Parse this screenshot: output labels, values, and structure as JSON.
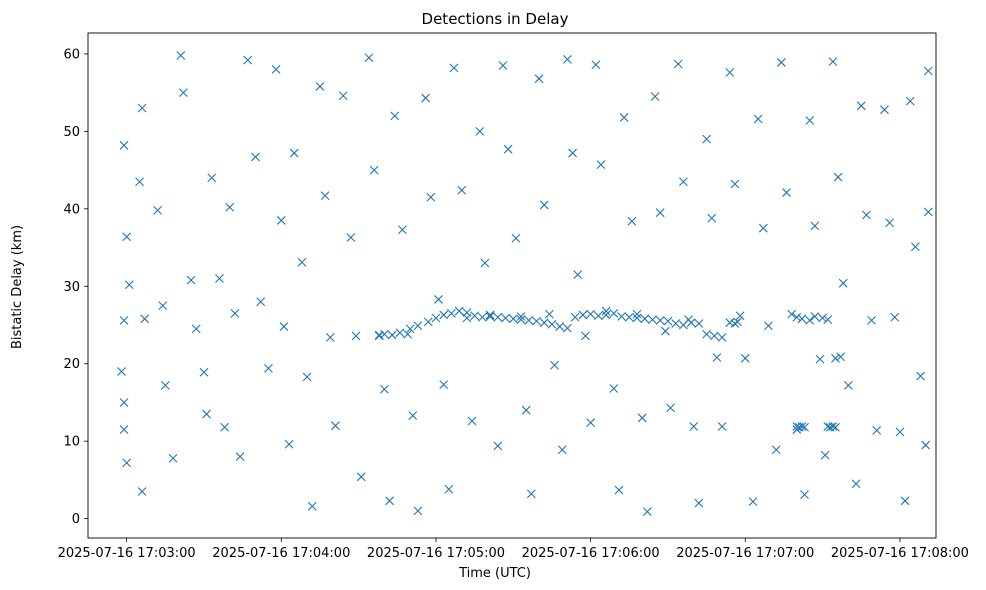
{
  "chart_data": {
    "type": "scatter",
    "title": "Detections in Delay",
    "xlabel": "Time (UTC)",
    "ylabel": "Bistatic Delay (km)",
    "marker": "x",
    "color": "#1f77b4",
    "xlim": [
      "2025-07-16 17:02:45",
      "2025-07-16 17:08:14"
    ],
    "ylim": [
      -2.5,
      62.7
    ],
    "x_ticks": [
      "2025-07-16 17:03:00",
      "2025-07-16 17:04:00",
      "2025-07-16 17:05:00",
      "2025-07-16 17:06:00",
      "2025-07-16 17:07:00",
      "2025-07-16 17:08:00"
    ],
    "y_ticks": [
      0,
      10,
      20,
      30,
      40,
      50,
      60
    ],
    "grid": false,
    "points": [
      [
        "2025-07-16 17:02:59",
        48.2
      ],
      [
        "2025-07-16 17:03:00",
        36.4
      ],
      [
        "2025-07-16 17:03:01",
        30.2
      ],
      [
        "2025-07-16 17:02:59",
        25.6
      ],
      [
        "2025-07-16 17:02:58",
        19.0
      ],
      [
        "2025-07-16 17:02:59",
        15.0
      ],
      [
        "2025-07-16 17:02:59",
        11.5
      ],
      [
        "2025-07-16 17:03:00",
        7.2
      ],
      [
        "2025-07-16 17:03:06",
        53.0
      ],
      [
        "2025-07-16 17:03:05",
        43.5
      ],
      [
        "2025-07-16 17:03:07",
        25.8
      ],
      [
        "2025-07-16 17:03:06",
        3.5
      ],
      [
        "2025-07-16 17:03:12",
        39.8
      ],
      [
        "2025-07-16 17:03:14",
        27.5
      ],
      [
        "2025-07-16 17:03:15",
        17.2
      ],
      [
        "2025-07-16 17:03:18",
        7.8
      ],
      [
        "2025-07-16 17:03:21",
        59.8
      ],
      [
        "2025-07-16 17:03:22",
        55.0
      ],
      [
        "2025-07-16 17:03:25",
        30.8
      ],
      [
        "2025-07-16 17:03:27",
        24.5
      ],
      [
        "2025-07-16 17:03:30",
        18.9
      ],
      [
        "2025-07-16 17:03:31",
        13.5
      ],
      [
        "2025-07-16 17:03:33",
        44.0
      ],
      [
        "2025-07-16 17:03:36",
        31.0
      ],
      [
        "2025-07-16 17:03:38",
        11.8
      ],
      [
        "2025-07-16 17:03:40",
        40.2
      ],
      [
        "2025-07-16 17:03:42",
        26.5
      ],
      [
        "2025-07-16 17:03:44",
        8.0
      ],
      [
        "2025-07-16 17:03:47",
        59.2
      ],
      [
        "2025-07-16 17:03:50",
        46.7
      ],
      [
        "2025-07-16 17:03:52",
        28.0
      ],
      [
        "2025-07-16 17:03:55",
        19.4
      ],
      [
        "2025-07-16 17:03:58",
        58.0
      ],
      [
        "2025-07-16 17:04:00",
        38.5
      ],
      [
        "2025-07-16 17:04:01",
        24.8
      ],
      [
        "2025-07-16 17:04:03",
        9.6
      ],
      [
        "2025-07-16 17:04:05",
        47.2
      ],
      [
        "2025-07-16 17:04:08",
        33.1
      ],
      [
        "2025-07-16 17:04:10",
        18.3
      ],
      [
        "2025-07-16 17:04:12",
        1.6
      ],
      [
        "2025-07-16 17:04:15",
        55.8
      ],
      [
        "2025-07-16 17:04:17",
        41.7
      ],
      [
        "2025-07-16 17:04:19",
        23.4
      ],
      [
        "2025-07-16 17:04:21",
        12.0
      ],
      [
        "2025-07-16 17:04:24",
        54.6
      ],
      [
        "2025-07-16 17:04:27",
        36.3
      ],
      [
        "2025-07-16 17:04:29",
        23.6
      ],
      [
        "2025-07-16 17:04:31",
        5.4
      ],
      [
        "2025-07-16 17:04:34",
        59.5
      ],
      [
        "2025-07-16 17:04:36",
        45.0
      ],
      [
        "2025-07-16 17:04:38",
        23.7
      ],
      [
        "2025-07-16 17:04:40",
        16.7
      ],
      [
        "2025-07-16 17:04:42",
        2.3
      ],
      [
        "2025-07-16 17:04:44",
        52.0
      ],
      [
        "2025-07-16 17:04:47",
        37.3
      ],
      [
        "2025-07-16 17:04:49",
        23.8
      ],
      [
        "2025-07-16 17:04:51",
        13.3
      ],
      [
        "2025-07-16 17:04:53",
        1.0
      ],
      [
        "2025-07-16 17:04:56",
        54.3
      ],
      [
        "2025-07-16 17:04:58",
        41.5
      ],
      [
        "2025-07-16 17:05:01",
        28.3
      ],
      [
        "2025-07-16 17:05:03",
        17.3
      ],
      [
        "2025-07-16 17:05:05",
        3.8
      ],
      [
        "2025-07-16 17:05:07",
        58.2
      ],
      [
        "2025-07-16 17:05:10",
        42.4
      ],
      [
        "2025-07-16 17:05:12",
        25.9
      ],
      [
        "2025-07-16 17:05:14",
        12.6
      ],
      [
        "2025-07-16 17:05:17",
        50.0
      ],
      [
        "2025-07-16 17:05:19",
        33.0
      ],
      [
        "2025-07-16 17:05:21",
        26.3
      ],
      [
        "2025-07-16 17:05:24",
        9.4
      ],
      [
        "2025-07-16 17:05:26",
        58.5
      ],
      [
        "2025-07-16 17:05:28",
        47.7
      ],
      [
        "2025-07-16 17:05:31",
        36.2
      ],
      [
        "2025-07-16 17:05:33",
        26.1
      ],
      [
        "2025-07-16 17:05:35",
        14.0
      ],
      [
        "2025-07-16 17:05:37",
        3.2
      ],
      [
        "2025-07-16 17:05:40",
        56.8
      ],
      [
        "2025-07-16 17:05:42",
        40.5
      ],
      [
        "2025-07-16 17:05:44",
        26.4
      ],
      [
        "2025-07-16 17:05:46",
        19.8
      ],
      [
        "2025-07-16 17:05:49",
        8.9
      ],
      [
        "2025-07-16 17:05:51",
        59.3
      ],
      [
        "2025-07-16 17:05:53",
        47.2
      ],
      [
        "2025-07-16 17:05:55",
        31.5
      ],
      [
        "2025-07-16 17:05:58",
        23.6
      ],
      [
        "2025-07-16 17:06:00",
        12.4
      ],
      [
        "2025-07-16 17:06:02",
        58.6
      ],
      [
        "2025-07-16 17:06:04",
        45.7
      ],
      [
        "2025-07-16 17:06:06",
        26.8
      ],
      [
        "2025-07-16 17:06:09",
        16.8
      ],
      [
        "2025-07-16 17:06:11",
        3.7
      ],
      [
        "2025-07-16 17:06:13",
        51.8
      ],
      [
        "2025-07-16 17:06:16",
        38.4
      ],
      [
        "2025-07-16 17:06:18",
        26.4
      ],
      [
        "2025-07-16 17:06:20",
        13.0
      ],
      [
        "2025-07-16 17:06:22",
        0.9
      ],
      [
        "2025-07-16 17:06:25",
        54.5
      ],
      [
        "2025-07-16 17:06:27",
        39.5
      ],
      [
        "2025-07-16 17:06:29",
        24.2
      ],
      [
        "2025-07-16 17:06:31",
        14.3
      ],
      [
        "2025-07-16 17:06:34",
        58.7
      ],
      [
        "2025-07-16 17:06:36",
        43.5
      ],
      [
        "2025-07-16 17:06:38",
        25.7
      ],
      [
        "2025-07-16 17:06:40",
        11.9
      ],
      [
        "2025-07-16 17:06:42",
        2.0
      ],
      [
        "2025-07-16 17:06:45",
        49.0
      ],
      [
        "2025-07-16 17:06:47",
        38.8
      ],
      [
        "2025-07-16 17:06:49",
        20.8
      ],
      [
        "2025-07-16 17:06:51",
        11.9
      ],
      [
        "2025-07-16 17:06:54",
        57.6
      ],
      [
        "2025-07-16 17:06:56",
        43.2
      ],
      [
        "2025-07-16 17:06:58",
        26.2
      ],
      [
        "2025-07-16 17:07:00",
        20.7
      ],
      [
        "2025-07-16 17:07:03",
        2.2
      ],
      [
        "2025-07-16 17:07:05",
        51.6
      ],
      [
        "2025-07-16 17:07:07",
        37.5
      ],
      [
        "2025-07-16 17:07:09",
        24.9
      ],
      [
        "2025-07-16 17:07:12",
        8.9
      ],
      [
        "2025-07-16 17:07:14",
        58.9
      ],
      [
        "2025-07-16 17:07:16",
        42.1
      ],
      [
        "2025-07-16 17:07:18",
        26.4
      ],
      [
        "2025-07-16 17:07:20",
        11.5
      ],
      [
        "2025-07-16 17:07:23",
        3.1
      ],
      [
        "2025-07-16 17:07:25",
        51.4
      ],
      [
        "2025-07-16 17:07:27",
        37.8
      ],
      [
        "2025-07-16 17:07:29",
        20.6
      ],
      [
        "2025-07-16 17:07:31",
        8.2
      ],
      [
        "2025-07-16 17:07:34",
        59.0
      ],
      [
        "2025-07-16 17:07:36",
        44.1
      ],
      [
        "2025-07-16 17:07:38",
        30.4
      ],
      [
        "2025-07-16 17:07:40",
        17.2
      ],
      [
        "2025-07-16 17:07:43",
        4.5
      ],
      [
        "2025-07-16 17:07:45",
        53.3
      ],
      [
        "2025-07-16 17:07:47",
        39.2
      ],
      [
        "2025-07-16 17:07:49",
        25.6
      ],
      [
        "2025-07-16 17:07:51",
        11.4
      ],
      [
        "2025-07-16 17:07:54",
        52.8
      ],
      [
        "2025-07-16 17:07:56",
        38.2
      ],
      [
        "2025-07-16 17:07:58",
        26.0
      ],
      [
        "2025-07-16 17:08:00",
        11.2
      ],
      [
        "2025-07-16 17:08:02",
        2.3
      ],
      [
        "2025-07-16 17:08:04",
        53.9
      ],
      [
        "2025-07-16 17:08:06",
        35.1
      ],
      [
        "2025-07-16 17:08:08",
        18.4
      ],
      [
        "2025-07-16 17:08:10",
        9.5
      ],
      [
        "2025-07-16 17:08:11",
        57.8
      ],
      [
        "2025-07-16 17:08:11",
        39.6
      ],
      [
        "2025-07-16 17:04:38",
        23.6
      ],
      [
        "2025-07-16 17:04:40",
        23.8
      ],
      [
        "2025-07-16 17:04:43",
        23.7
      ],
      [
        "2025-07-16 17:04:46",
        24.0
      ],
      [
        "2025-07-16 17:04:50",
        24.5
      ],
      [
        "2025-07-16 17:04:53",
        24.9
      ],
      [
        "2025-07-16 17:04:57",
        25.4
      ],
      [
        "2025-07-16 17:05:00",
        25.9
      ],
      [
        "2025-07-16 17:05:03",
        26.3
      ],
      [
        "2025-07-16 17:05:06",
        26.5
      ],
      [
        "2025-07-16 17:05:09",
        26.8
      ],
      [
        "2025-07-16 17:05:12",
        26.6
      ],
      [
        "2025-07-16 17:05:15",
        26.2
      ],
      [
        "2025-07-16 17:05:18",
        26.0
      ],
      [
        "2025-07-16 17:05:21",
        26.1
      ],
      [
        "2025-07-16 17:05:24",
        26.0
      ],
      [
        "2025-07-16 17:05:27",
        25.9
      ],
      [
        "2025-07-16 17:05:30",
        25.8
      ],
      [
        "2025-07-16 17:05:33",
        25.7
      ],
      [
        "2025-07-16 17:05:36",
        25.6
      ],
      [
        "2025-07-16 17:05:39",
        25.5
      ],
      [
        "2025-07-16 17:05:42",
        25.3
      ],
      [
        "2025-07-16 17:05:45",
        25.1
      ],
      [
        "2025-07-16 17:05:48",
        24.8
      ],
      [
        "2025-07-16 17:05:51",
        24.6
      ],
      [
        "2025-07-16 17:05:54",
        26.0
      ],
      [
        "2025-07-16 17:05:57",
        26.3
      ],
      [
        "2025-07-16 17:06:00",
        26.4
      ],
      [
        "2025-07-16 17:06:03",
        26.2
      ],
      [
        "2025-07-16 17:06:06",
        26.3
      ],
      [
        "2025-07-16 17:06:09",
        26.5
      ],
      [
        "2025-07-16 17:06:12",
        26.1
      ],
      [
        "2025-07-16 17:06:15",
        26.0
      ],
      [
        "2025-07-16 17:06:18",
        25.9
      ],
      [
        "2025-07-16 17:06:21",
        25.8
      ],
      [
        "2025-07-16 17:06:24",
        25.7
      ],
      [
        "2025-07-16 17:06:27",
        25.6
      ],
      [
        "2025-07-16 17:06:30",
        25.5
      ],
      [
        "2025-07-16 17:06:33",
        25.2
      ],
      [
        "2025-07-16 17:06:36",
        25.0
      ],
      [
        "2025-07-16 17:06:39",
        25.3
      ],
      [
        "2025-07-16 17:06:42",
        25.2
      ],
      [
        "2025-07-16 17:06:45",
        23.8
      ],
      [
        "2025-07-16 17:06:48",
        23.6
      ],
      [
        "2025-07-16 17:06:51",
        23.4
      ],
      [
        "2025-07-16 17:06:54",
        25.3
      ],
      [
        "2025-07-16 17:06:56",
        25.2
      ],
      [
        "2025-07-16 17:06:57",
        25.4
      ],
      [
        "2025-07-16 17:07:20",
        26.0
      ],
      [
        "2025-07-16 17:07:22",
        25.8
      ],
      [
        "2025-07-16 17:07:25",
        25.6
      ],
      [
        "2025-07-16 17:07:27",
        26.1
      ],
      [
        "2025-07-16 17:07:30",
        25.9
      ],
      [
        "2025-07-16 17:07:32",
        25.7
      ],
      [
        "2025-07-16 17:07:35",
        20.7
      ],
      [
        "2025-07-16 17:07:37",
        20.9
      ],
      [
        "2025-07-16 17:07:20",
        11.9
      ],
      [
        "2025-07-16 17:07:21",
        11.8
      ],
      [
        "2025-07-16 17:07:22",
        11.9
      ],
      [
        "2025-07-16 17:07:23",
        11.8
      ],
      [
        "2025-07-16 17:07:32",
        11.9
      ],
      [
        "2025-07-16 17:07:33",
        11.8
      ],
      [
        "2025-07-16 17:07:34",
        11.9
      ],
      [
        "2025-07-16 17:07:35",
        11.8
      ]
    ]
  }
}
